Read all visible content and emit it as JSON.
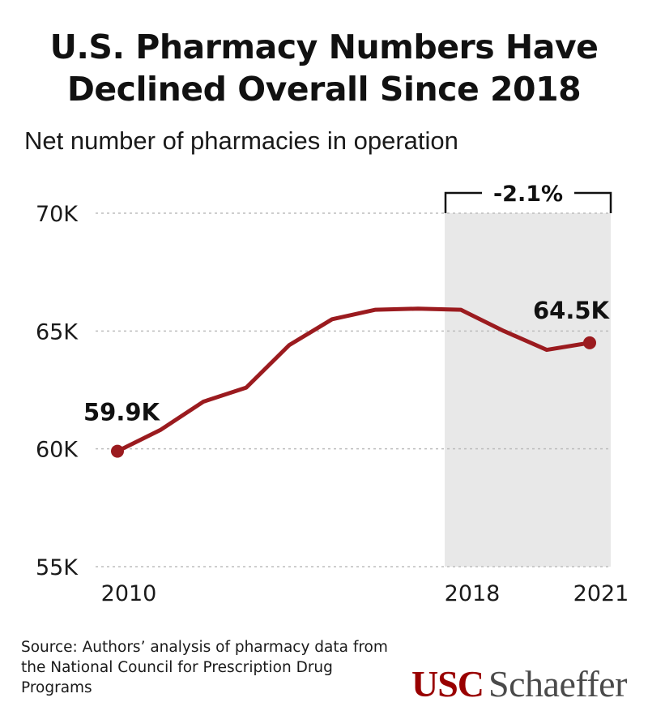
{
  "title_line1": "U.S. Pharmacy Numbers Have",
  "title_line2": "Declined Overall Since 2018",
  "subtitle": "Net number of pharmacies in operation",
  "source": "Source: Authors’ analysis of pharmacy data from the National Council for Prescription Drug Programs",
  "logo": {
    "usc": "USC",
    "schaeffer": "Schaeffer"
  },
  "colors": {
    "line": "#9b1b1f",
    "shade": "#e8e8e8",
    "grid": "#bdbdbd",
    "logo_red": "#990000"
  },
  "chart_data": {
    "type": "line",
    "x": [
      2010,
      2011,
      2012,
      2013,
      2014,
      2015,
      2016,
      2017,
      2018,
      2019,
      2020,
      2021
    ],
    "series": [
      {
        "values": [
          59.9,
          60.8,
          62.0,
          62.6,
          64.4,
          65.5,
          65.9,
          65.95,
          65.9,
          65.0,
          64.2,
          64.5
        ]
      }
    ],
    "xticks": [
      "2010",
      "2018",
      "2021"
    ],
    "yticks": [
      "55K",
      "60K",
      "65K",
      "70K"
    ],
    "ylim": [
      55,
      70
    ],
    "xlim": [
      2010,
      2021
    ],
    "grid": "dotted horizontal",
    "annotations": [
      {
        "text": "59.9K",
        "x": 2010,
        "y": 59.9
      },
      {
        "text": "64.5K",
        "x": 2021,
        "y": 64.5
      }
    ],
    "shaded_region": {
      "x_start": 2018,
      "x_end": 2021,
      "label": "-2.1%"
    }
  }
}
